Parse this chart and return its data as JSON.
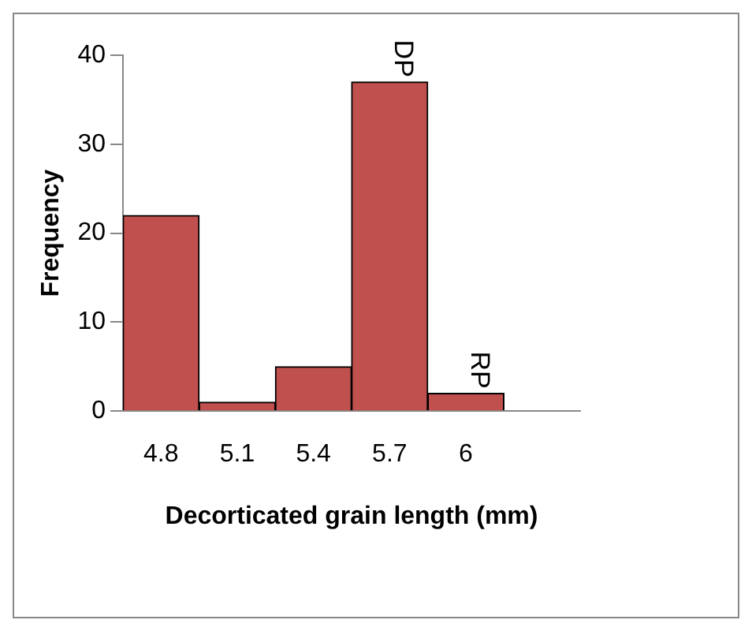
{
  "chart_data": {
    "type": "bar",
    "xlabel": "Decorticated grain length (mm)",
    "ylabel": "Frequency",
    "categories": [
      "4.8",
      "5.1",
      "5.4",
      "5.7",
      "6",
      null
    ],
    "values": [
      22,
      1,
      5,
      37,
      2,
      null
    ],
    "color": "#c0504d",
    "ylim": [
      0,
      40
    ],
    "yticks": [
      0,
      10,
      20,
      30,
      40
    ],
    "grid": false,
    "legend": false,
    "annotations": [
      {
        "text": "DP",
        "x": "5.7",
        "y": 37
      },
      {
        "text": "RP",
        "x": "6",
        "y": 2
      }
    ]
  }
}
